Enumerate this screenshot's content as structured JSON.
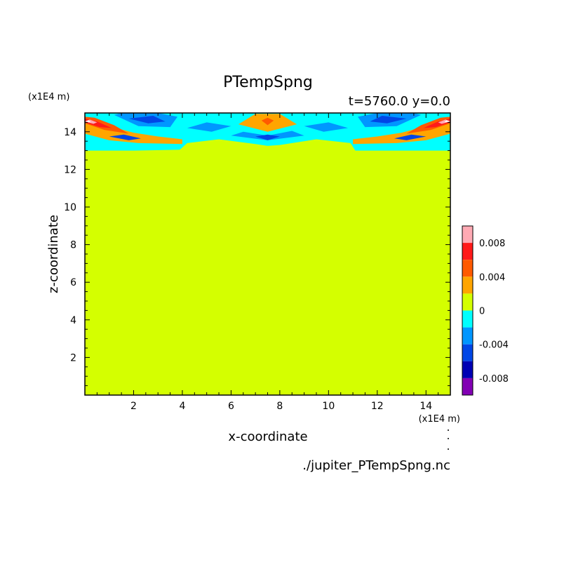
{
  "chart_data": {
    "type": "heatmap",
    "title": "PTempSpng",
    "subtitle": "t=5760.0  y=0.0",
    "xlabel": "x-coordinate",
    "ylabel": "z-coordinate",
    "x_unit": "(x1E4 m)",
    "y_unit": "(x1E4 m)",
    "source_file": "./jupiter_PTempSpng.nc",
    "xlim": [
      0.0,
      15.0
    ],
    "ylim": [
      0.0,
      15.0
    ],
    "x_ticks": [
      2,
      4,
      6,
      8,
      10,
      12,
      14
    ],
    "y_ticks": [
      2,
      4,
      6,
      8,
      10,
      12,
      14
    ],
    "x_tick_labels": [
      "2",
      "4",
      "6",
      "8",
      "10",
      "12",
      "14"
    ],
    "y_tick_labels": [
      "2",
      "4",
      "6",
      "8",
      "10",
      "12",
      "14"
    ],
    "background_level": 0,
    "colorbar": {
      "levels": [
        {
          "lo": 0.008,
          "hi": 0.01,
          "color": "#ffaab4"
        },
        {
          "lo": 0.006,
          "hi": 0.008,
          "color": "#ff1a1a"
        },
        {
          "lo": 0.004,
          "hi": 0.006,
          "color": "#ff5a00"
        },
        {
          "lo": 0.002,
          "hi": 0.004,
          "color": "#ffa500"
        },
        {
          "lo": 0.0,
          "hi": 0.002,
          "color": "#d4ff00"
        },
        {
          "lo": -0.002,
          "hi": 0.0,
          "color": "#00ffff"
        },
        {
          "lo": -0.004,
          "hi": -0.002,
          "color": "#0096ff"
        },
        {
          "lo": -0.006,
          "hi": -0.004,
          "color": "#0046e6"
        },
        {
          "lo": -0.008,
          "hi": -0.006,
          "color": "#0000b4"
        },
        {
          "lo": -0.01,
          "hi": -0.008,
          "color": "#8200b4"
        }
      ],
      "tick_values": [
        0.008,
        0.004,
        0,
        -0.004,
        -0.008
      ],
      "tick_labels": [
        "0.008",
        "0.004",
        "0",
        "-0.004",
        "-0.008"
      ]
    },
    "regions": [
      {
        "color": "#00ffff",
        "points": [
          [
            0.0,
            13.0
          ],
          [
            2.0,
            13.0
          ],
          [
            3.9,
            13.05
          ],
          [
            4.2,
            13.4
          ],
          [
            5.5,
            13.6
          ],
          [
            7.0,
            13.35
          ],
          [
            7.5,
            13.25
          ],
          [
            8.0,
            13.3
          ],
          [
            9.5,
            13.6
          ],
          [
            10.9,
            13.4
          ],
          [
            11.1,
            13.0
          ],
          [
            13.0,
            13.0
          ],
          [
            15.0,
            13.0
          ],
          [
            15.0,
            15.0
          ],
          [
            0.0,
            15.0
          ]
        ]
      },
      {
        "color": "#ffa500",
        "points": [
          [
            0.0,
            13.9
          ],
          [
            1.0,
            13.55
          ],
          [
            2.2,
            13.4
          ],
          [
            4.0,
            13.35
          ],
          [
            4.0,
            13.6
          ],
          [
            3.0,
            13.75
          ],
          [
            2.0,
            13.95
          ],
          [
            1.0,
            14.3
          ],
          [
            0.0,
            14.6
          ]
        ]
      },
      {
        "color": "#ffa500",
        "points": [
          [
            15.0,
            13.9
          ],
          [
            14.0,
            13.55
          ],
          [
            12.8,
            13.4
          ],
          [
            11.0,
            13.35
          ],
          [
            11.0,
            13.6
          ],
          [
            12.0,
            13.75
          ],
          [
            13.0,
            13.95
          ],
          [
            14.0,
            14.3
          ],
          [
            15.0,
            14.6
          ]
        ]
      },
      {
        "color": "#0096ff",
        "points": [
          [
            1.2,
            14.9
          ],
          [
            2.2,
            14.3
          ],
          [
            3.5,
            14.25
          ],
          [
            3.8,
            14.8
          ],
          [
            3.0,
            15.0
          ],
          [
            1.5,
            15.0
          ]
        ]
      },
      {
        "color": "#0096ff",
        "points": [
          [
            13.8,
            14.9
          ],
          [
            12.8,
            14.3
          ],
          [
            11.5,
            14.25
          ],
          [
            11.2,
            14.8
          ],
          [
            12.0,
            15.0
          ],
          [
            13.5,
            15.0
          ]
        ]
      },
      {
        "color": "#0046e6",
        "points": [
          [
            1.8,
            14.7
          ],
          [
            2.6,
            14.45
          ],
          [
            3.3,
            14.55
          ],
          [
            2.8,
            14.85
          ]
        ]
      },
      {
        "color": "#0046e6",
        "points": [
          [
            13.2,
            14.7
          ],
          [
            12.4,
            14.45
          ],
          [
            11.7,
            14.55
          ],
          [
            12.2,
            14.85
          ]
        ]
      },
      {
        "color": "#0096ff",
        "points": [
          [
            4.2,
            14.2
          ],
          [
            5.2,
            14.0
          ],
          [
            6.0,
            14.3
          ],
          [
            5.0,
            14.5
          ]
        ]
      },
      {
        "color": "#0096ff",
        "points": [
          [
            10.8,
            14.2
          ],
          [
            9.8,
            14.0
          ],
          [
            9.0,
            14.3
          ],
          [
            10.0,
            14.5
          ]
        ]
      },
      {
        "color": "#0096ff",
        "points": [
          [
            6.0,
            13.8
          ],
          [
            7.5,
            13.55
          ],
          [
            9.0,
            13.8
          ],
          [
            8.5,
            14.05
          ],
          [
            7.5,
            13.8
          ],
          [
            6.5,
            14.0
          ]
        ]
      },
      {
        "color": "#ffa500",
        "points": [
          [
            6.3,
            14.4
          ],
          [
            7.5,
            14.0
          ],
          [
            8.7,
            14.4
          ],
          [
            8.0,
            14.95
          ],
          [
            7.0,
            14.95
          ]
        ]
      },
      {
        "color": "#ff5a00",
        "points": [
          [
            7.25,
            14.6
          ],
          [
            7.5,
            14.35
          ],
          [
            7.75,
            14.6
          ],
          [
            7.5,
            14.75
          ]
        ]
      },
      {
        "color": "#ff5a00",
        "points": [
          [
            0.0,
            14.45
          ],
          [
            0.8,
            14.1
          ],
          [
            1.8,
            13.9
          ],
          [
            1.2,
            14.35
          ],
          [
            0.4,
            14.75
          ],
          [
            0.0,
            14.8
          ]
        ]
      },
      {
        "color": "#ff5a00",
        "points": [
          [
            15.0,
            14.45
          ],
          [
            14.2,
            14.1
          ],
          [
            13.2,
            13.9
          ],
          [
            13.8,
            14.35
          ],
          [
            14.6,
            14.75
          ],
          [
            15.0,
            14.8
          ]
        ]
      },
      {
        "color": "#ff1a1a",
        "points": [
          [
            0.0,
            14.5
          ],
          [
            0.6,
            14.25
          ],
          [
            1.1,
            14.2
          ],
          [
            0.5,
            14.55
          ],
          [
            0.0,
            14.7
          ]
        ]
      },
      {
        "color": "#ff1a1a",
        "points": [
          [
            15.0,
            14.5
          ],
          [
            14.4,
            14.25
          ],
          [
            13.9,
            14.2
          ],
          [
            14.5,
            14.55
          ],
          [
            15.0,
            14.7
          ]
        ]
      },
      {
        "color": "#ffaab4",
        "points": [
          [
            0.0,
            14.55
          ],
          [
            0.35,
            14.42
          ],
          [
            0.5,
            14.5
          ],
          [
            0.2,
            14.65
          ]
        ]
      },
      {
        "color": "#ffaab4",
        "points": [
          [
            15.0,
            14.55
          ],
          [
            14.65,
            14.42
          ],
          [
            14.5,
            14.5
          ],
          [
            14.8,
            14.65
          ]
        ]
      },
      {
        "color": "#ffffff",
        "points": [
          [
            0.0,
            14.55
          ],
          [
            0.25,
            14.5
          ],
          [
            0.15,
            14.62
          ]
        ]
      },
      {
        "color": "#ffffff",
        "points": [
          [
            15.0,
            14.55
          ],
          [
            14.75,
            14.5
          ],
          [
            14.85,
            14.62
          ]
        ]
      },
      {
        "color": "#0046e6",
        "points": [
          [
            1.0,
            13.75
          ],
          [
            1.8,
            13.55
          ],
          [
            2.3,
            13.65
          ],
          [
            1.6,
            13.85
          ]
        ]
      },
      {
        "color": "#0046e6",
        "points": [
          [
            14.0,
            13.75
          ],
          [
            13.2,
            13.55
          ],
          [
            12.7,
            13.65
          ],
          [
            13.4,
            13.85
          ]
        ]
      },
      {
        "color": "#0046e6",
        "points": [
          [
            7.0,
            13.75
          ],
          [
            7.5,
            13.55
          ],
          [
            8.0,
            13.75
          ],
          [
            7.5,
            13.85
          ]
        ]
      }
    ]
  }
}
